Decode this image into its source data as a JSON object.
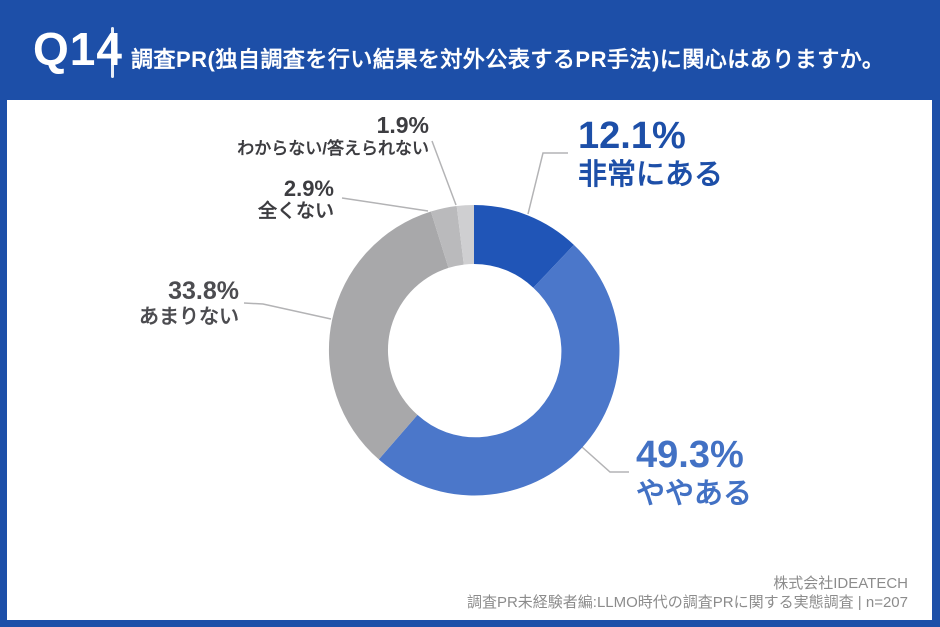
{
  "header": {
    "question_number": "Q14",
    "title": "調査PR(独自調査を行い結果を対外公表するPR手法)に関心はありますか。"
  },
  "footer": {
    "company": "株式会社IDEATECH",
    "survey": "調査PR未経験者編:LLMO時代の調査PRに関する実態調査 | n=207"
  },
  "colors": {
    "frame_blue": "#1d4fa8",
    "panel_white": "#ffffff",
    "leader_line": "#b3b3b5",
    "footer_gray": "#8c8c8c"
  },
  "chart_data": {
    "type": "pie",
    "subtype": "donut",
    "title": "調査PR(独自調査を行い結果を対外公表するPR手法)に関心はありますか。",
    "n": 207,
    "unit": "%",
    "start_angle_deg": 0,
    "direction": "clockwise",
    "inner_radius_ratio": 0.59,
    "segments": [
      {
        "name": "非常にある",
        "value": 12.1,
        "pct_label": "12.1%",
        "color": "#2055b7",
        "label_color": "#1d4fa8"
      },
      {
        "name": "ややある",
        "value": 49.3,
        "pct_label": "49.3%",
        "color": "#4b77ca",
        "label_color": "#4271c4"
      },
      {
        "name": "あまりない",
        "value": 33.8,
        "pct_label": "33.8%",
        "color": "#a8a8aa",
        "label_color": "#4c4c50"
      },
      {
        "name": "全くない",
        "value": 2.9,
        "pct_label": "2.9%",
        "color": "#bababc",
        "label_color": "#3d3d41"
      },
      {
        "name": "わからない/答えられない",
        "value": 1.9,
        "pct_label": "1.9%",
        "color": "#cfcfd1",
        "label_color": "#3d3d41"
      }
    ]
  }
}
